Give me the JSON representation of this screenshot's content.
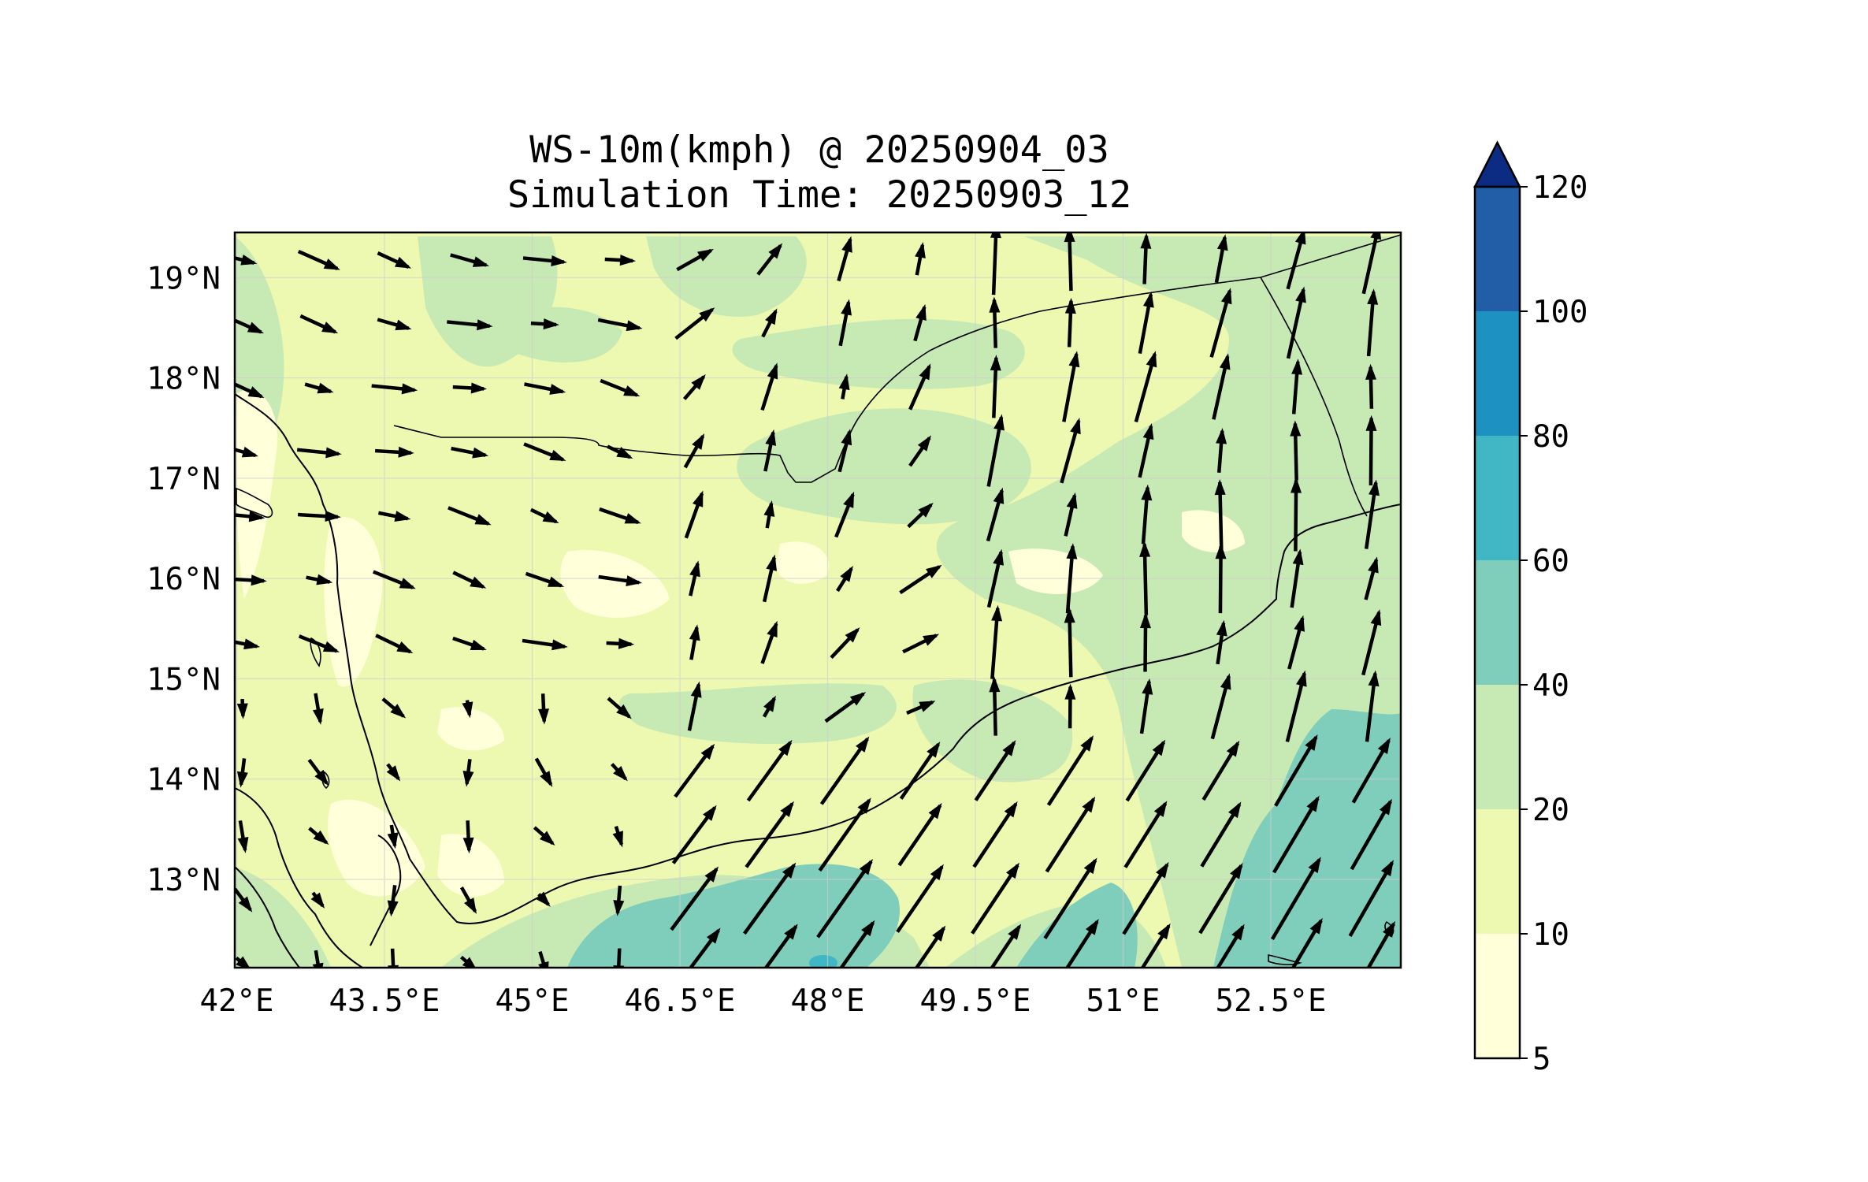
{
  "title_line1": "WS-10m(kmph) @ 20250904_03",
  "title_line2": "Simulation Time: 20250903_12",
  "map": {
    "lon_range": [
      41.98,
      53.82
    ],
    "lat_range": [
      12.12,
      19.45
    ],
    "lon_ticks": [
      {
        "value": 42.0,
        "label": "42°E"
      },
      {
        "value": 43.5,
        "label": "43.5°E"
      },
      {
        "value": 45.0,
        "label": "45°E"
      },
      {
        "value": 46.5,
        "label": "46.5°E"
      },
      {
        "value": 48.0,
        "label": "48°E"
      },
      {
        "value": 49.5,
        "label": "49.5°E"
      },
      {
        "value": 51.0,
        "label": "51°E"
      },
      {
        "value": 52.5,
        "label": "52.5°E"
      }
    ],
    "lat_ticks": [
      {
        "value": 19,
        "label": "19°N"
      },
      {
        "value": 18,
        "label": "18°N"
      },
      {
        "value": 17,
        "label": "17°N"
      },
      {
        "value": 16,
        "label": "16°N"
      },
      {
        "value": 15,
        "label": "15°N"
      },
      {
        "value": 14,
        "label": "14°N"
      },
      {
        "value": 13,
        "label": "13°N"
      }
    ],
    "gridlines": true
  },
  "colorbar": {
    "levels": [
      {
        "value": 5,
        "label": "5"
      },
      {
        "value": 10,
        "label": "10"
      },
      {
        "value": 20,
        "label": "20"
      },
      {
        "value": 40,
        "label": "40"
      },
      {
        "value": 60,
        "label": "60"
      },
      {
        "value": 80,
        "label": "80"
      },
      {
        "value": 100,
        "label": "100"
      },
      {
        "value": 120,
        "label": "120"
      }
    ],
    "colors": [
      "#ffffd9",
      "#edf8b1",
      "#c7e9b4",
      "#7fcdbb",
      "#41b6c4",
      "#1d91c0",
      "#225ea8",
      "#0c2c84"
    ],
    "extend": "max"
  }
}
